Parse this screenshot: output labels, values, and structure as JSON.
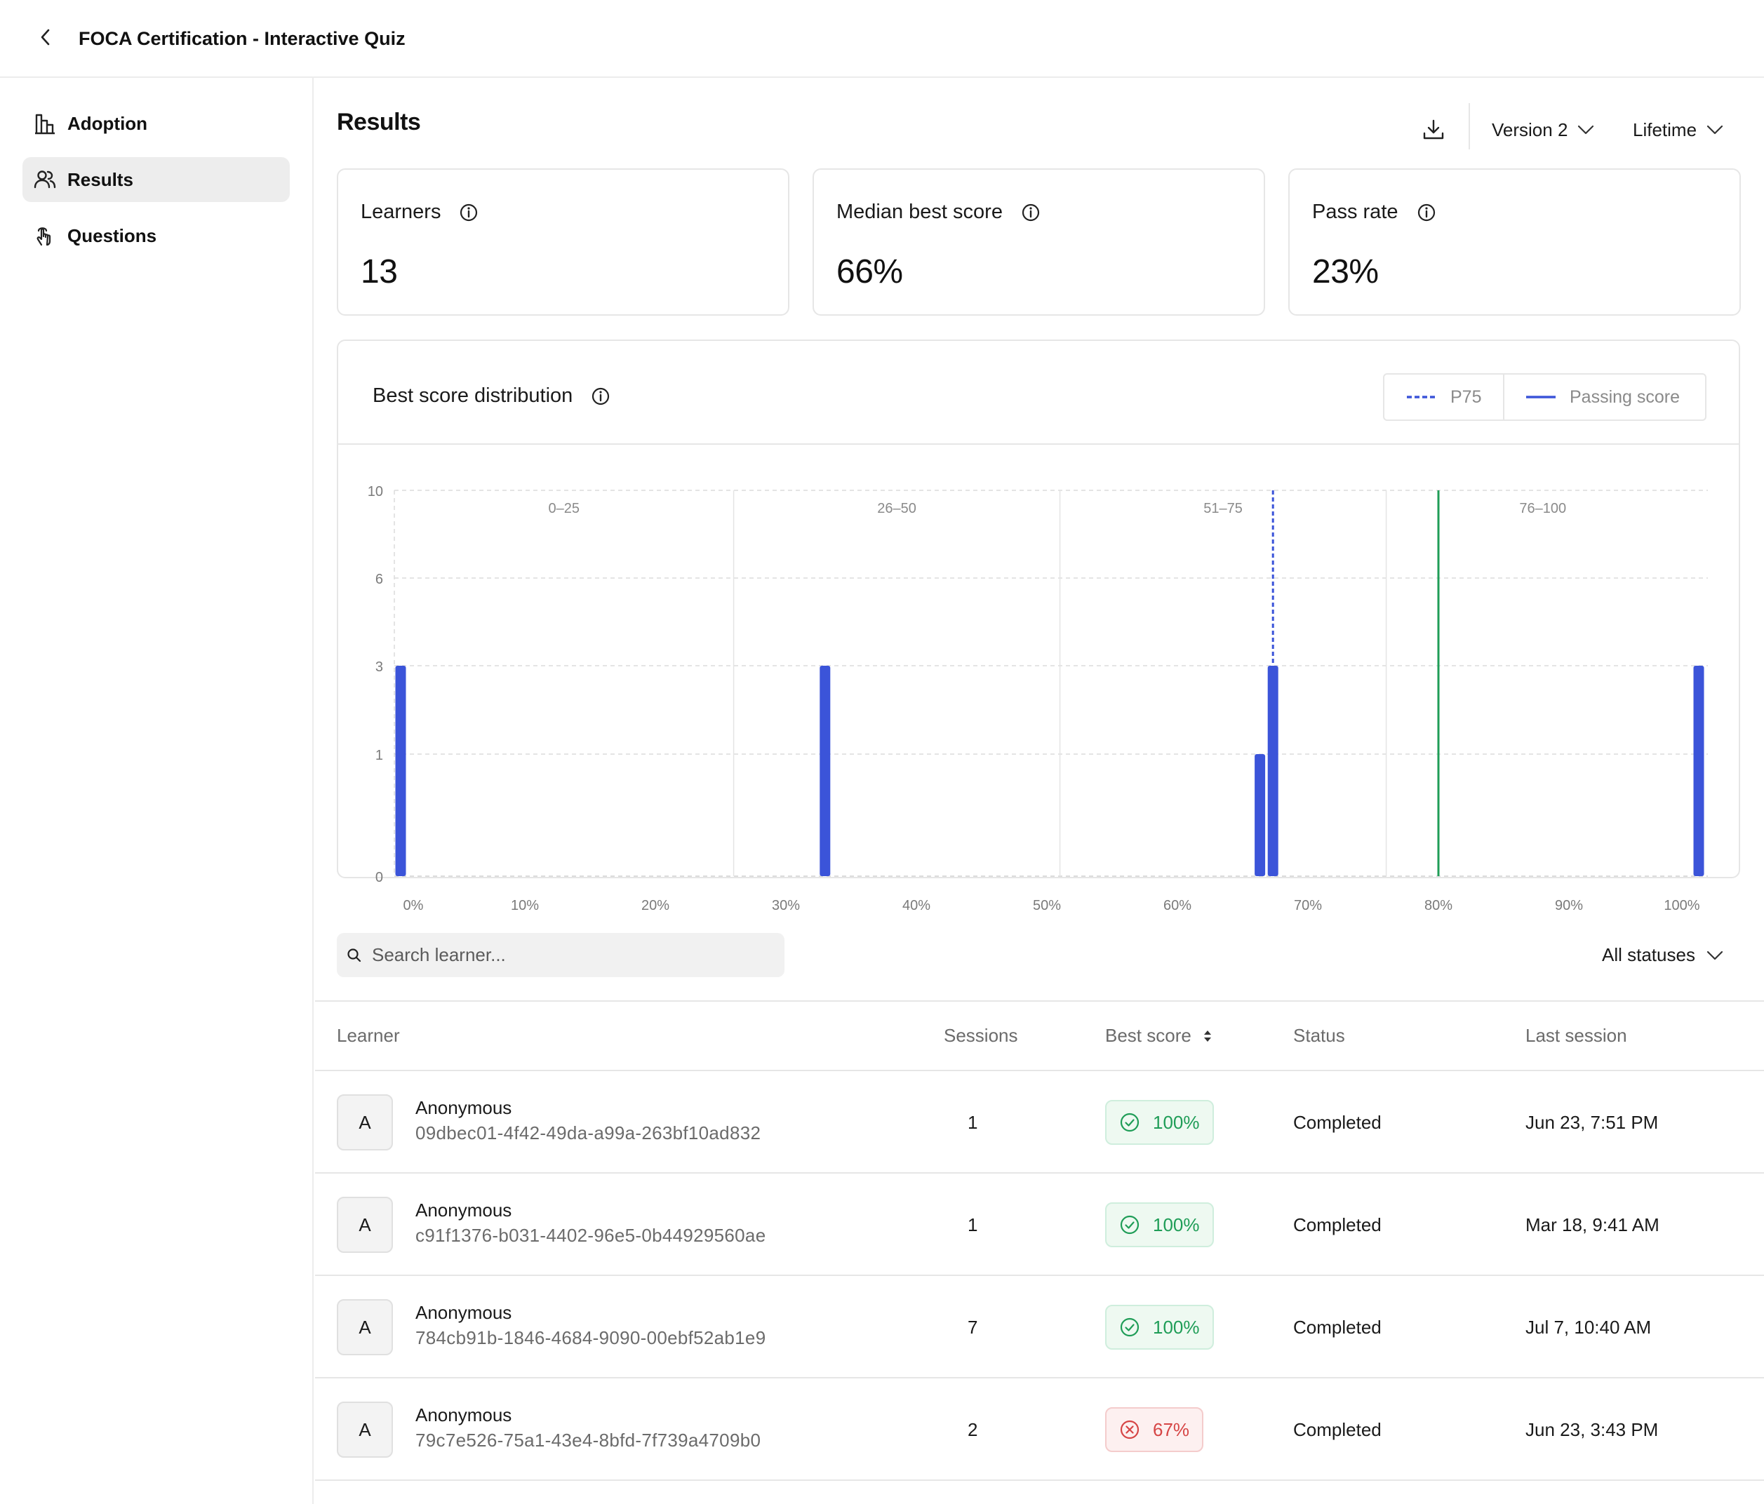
{
  "header": {
    "title": "FOCA Certification - Interactive Quiz"
  },
  "sidebar": {
    "items": [
      {
        "label": "Adoption",
        "icon": "bar-chart-icon"
      },
      {
        "label": "Results",
        "icon": "users-icon",
        "active": true
      },
      {
        "label": "Questions",
        "icon": "pointer-hand-icon"
      }
    ]
  },
  "main": {
    "title": "Results",
    "version_label": "Version 2",
    "period_label": "Lifetime"
  },
  "stats": [
    {
      "label": "Learners",
      "value": "13"
    },
    {
      "label": "Median best score",
      "value": "66%"
    },
    {
      "label": "Pass rate",
      "value": "23%"
    }
  ],
  "chart": {
    "title": "Best score distribution",
    "legend": {
      "p75": "P75",
      "passing": "Passing score"
    }
  },
  "colors": {
    "bar": "#3b54d9",
    "p75": "#3b54d9",
    "passing": "#1f9d57",
    "pass": "#1f9d57",
    "fail": "#d64545"
  },
  "chart_data": {
    "type": "bar",
    "title": "Best score distribution",
    "xlabel": "",
    "ylabel": "",
    "x_ticks": [
      "0%",
      "10%",
      "20%",
      "30%",
      "40%",
      "50%",
      "60%",
      "70%",
      "80%",
      "90%",
      "100%"
    ],
    "xlim": [
      0,
      100
    ],
    "y_ticks": [
      "10",
      "6",
      "3",
      "1",
      "0"
    ],
    "y_tick_values": [
      10,
      6,
      3,
      1,
      0
    ],
    "bands": [
      "0–25",
      "26–50",
      "51–75",
      "76–100"
    ],
    "band_edges": [
      0,
      26,
      51,
      76,
      100
    ],
    "series": [
      {
        "name": "",
        "points": [
          {
            "x": 0,
            "y": 3
          },
          {
            "x": 33,
            "y": 3
          },
          {
            "x": 66,
            "y": 1
          },
          {
            "x": 67,
            "y": 3
          },
          {
            "x": 100,
            "y": 3
          }
        ]
      }
    ],
    "reference_lines": [
      {
        "name": "P75",
        "x": 67,
        "style": "dashed"
      },
      {
        "name": "Passing score",
        "x": 80,
        "style": "solid"
      }
    ],
    "grid": true,
    "legend_position": "top-right"
  },
  "filters": {
    "search_placeholder": "Search learner...",
    "status_label": "All statuses"
  },
  "table": {
    "columns": [
      "Learner",
      "Sessions",
      "Best score",
      "Status",
      "Last session"
    ],
    "rows": [
      {
        "initial": "A",
        "name": "Anonymous",
        "id": "09dbec01-4f42-49da-a99a-263bf10ad832",
        "sessions": "1",
        "score": "100%",
        "passed": true,
        "status": "Completed",
        "last_session": "Jun 23, 7:51 PM"
      },
      {
        "initial": "A",
        "name": "Anonymous",
        "id": "c91f1376-b031-4402-96e5-0b44929560ae",
        "sessions": "1",
        "score": "100%",
        "passed": true,
        "status": "Completed",
        "last_session": "Mar 18, 9:41 AM"
      },
      {
        "initial": "A",
        "name": "Anonymous",
        "id": "784cb91b-1846-4684-9090-00ebf52ab1e9",
        "sessions": "7",
        "score": "100%",
        "passed": true,
        "status": "Completed",
        "last_session": "Jul 7, 10:40 AM"
      },
      {
        "initial": "A",
        "name": "Anonymous",
        "id": "79c7e526-75a1-43e4-8bfd-7f739a4709b0",
        "sessions": "2",
        "score": "67%",
        "passed": false,
        "status": "Completed",
        "last_session": "Jun 23, 3:43 PM"
      }
    ]
  }
}
